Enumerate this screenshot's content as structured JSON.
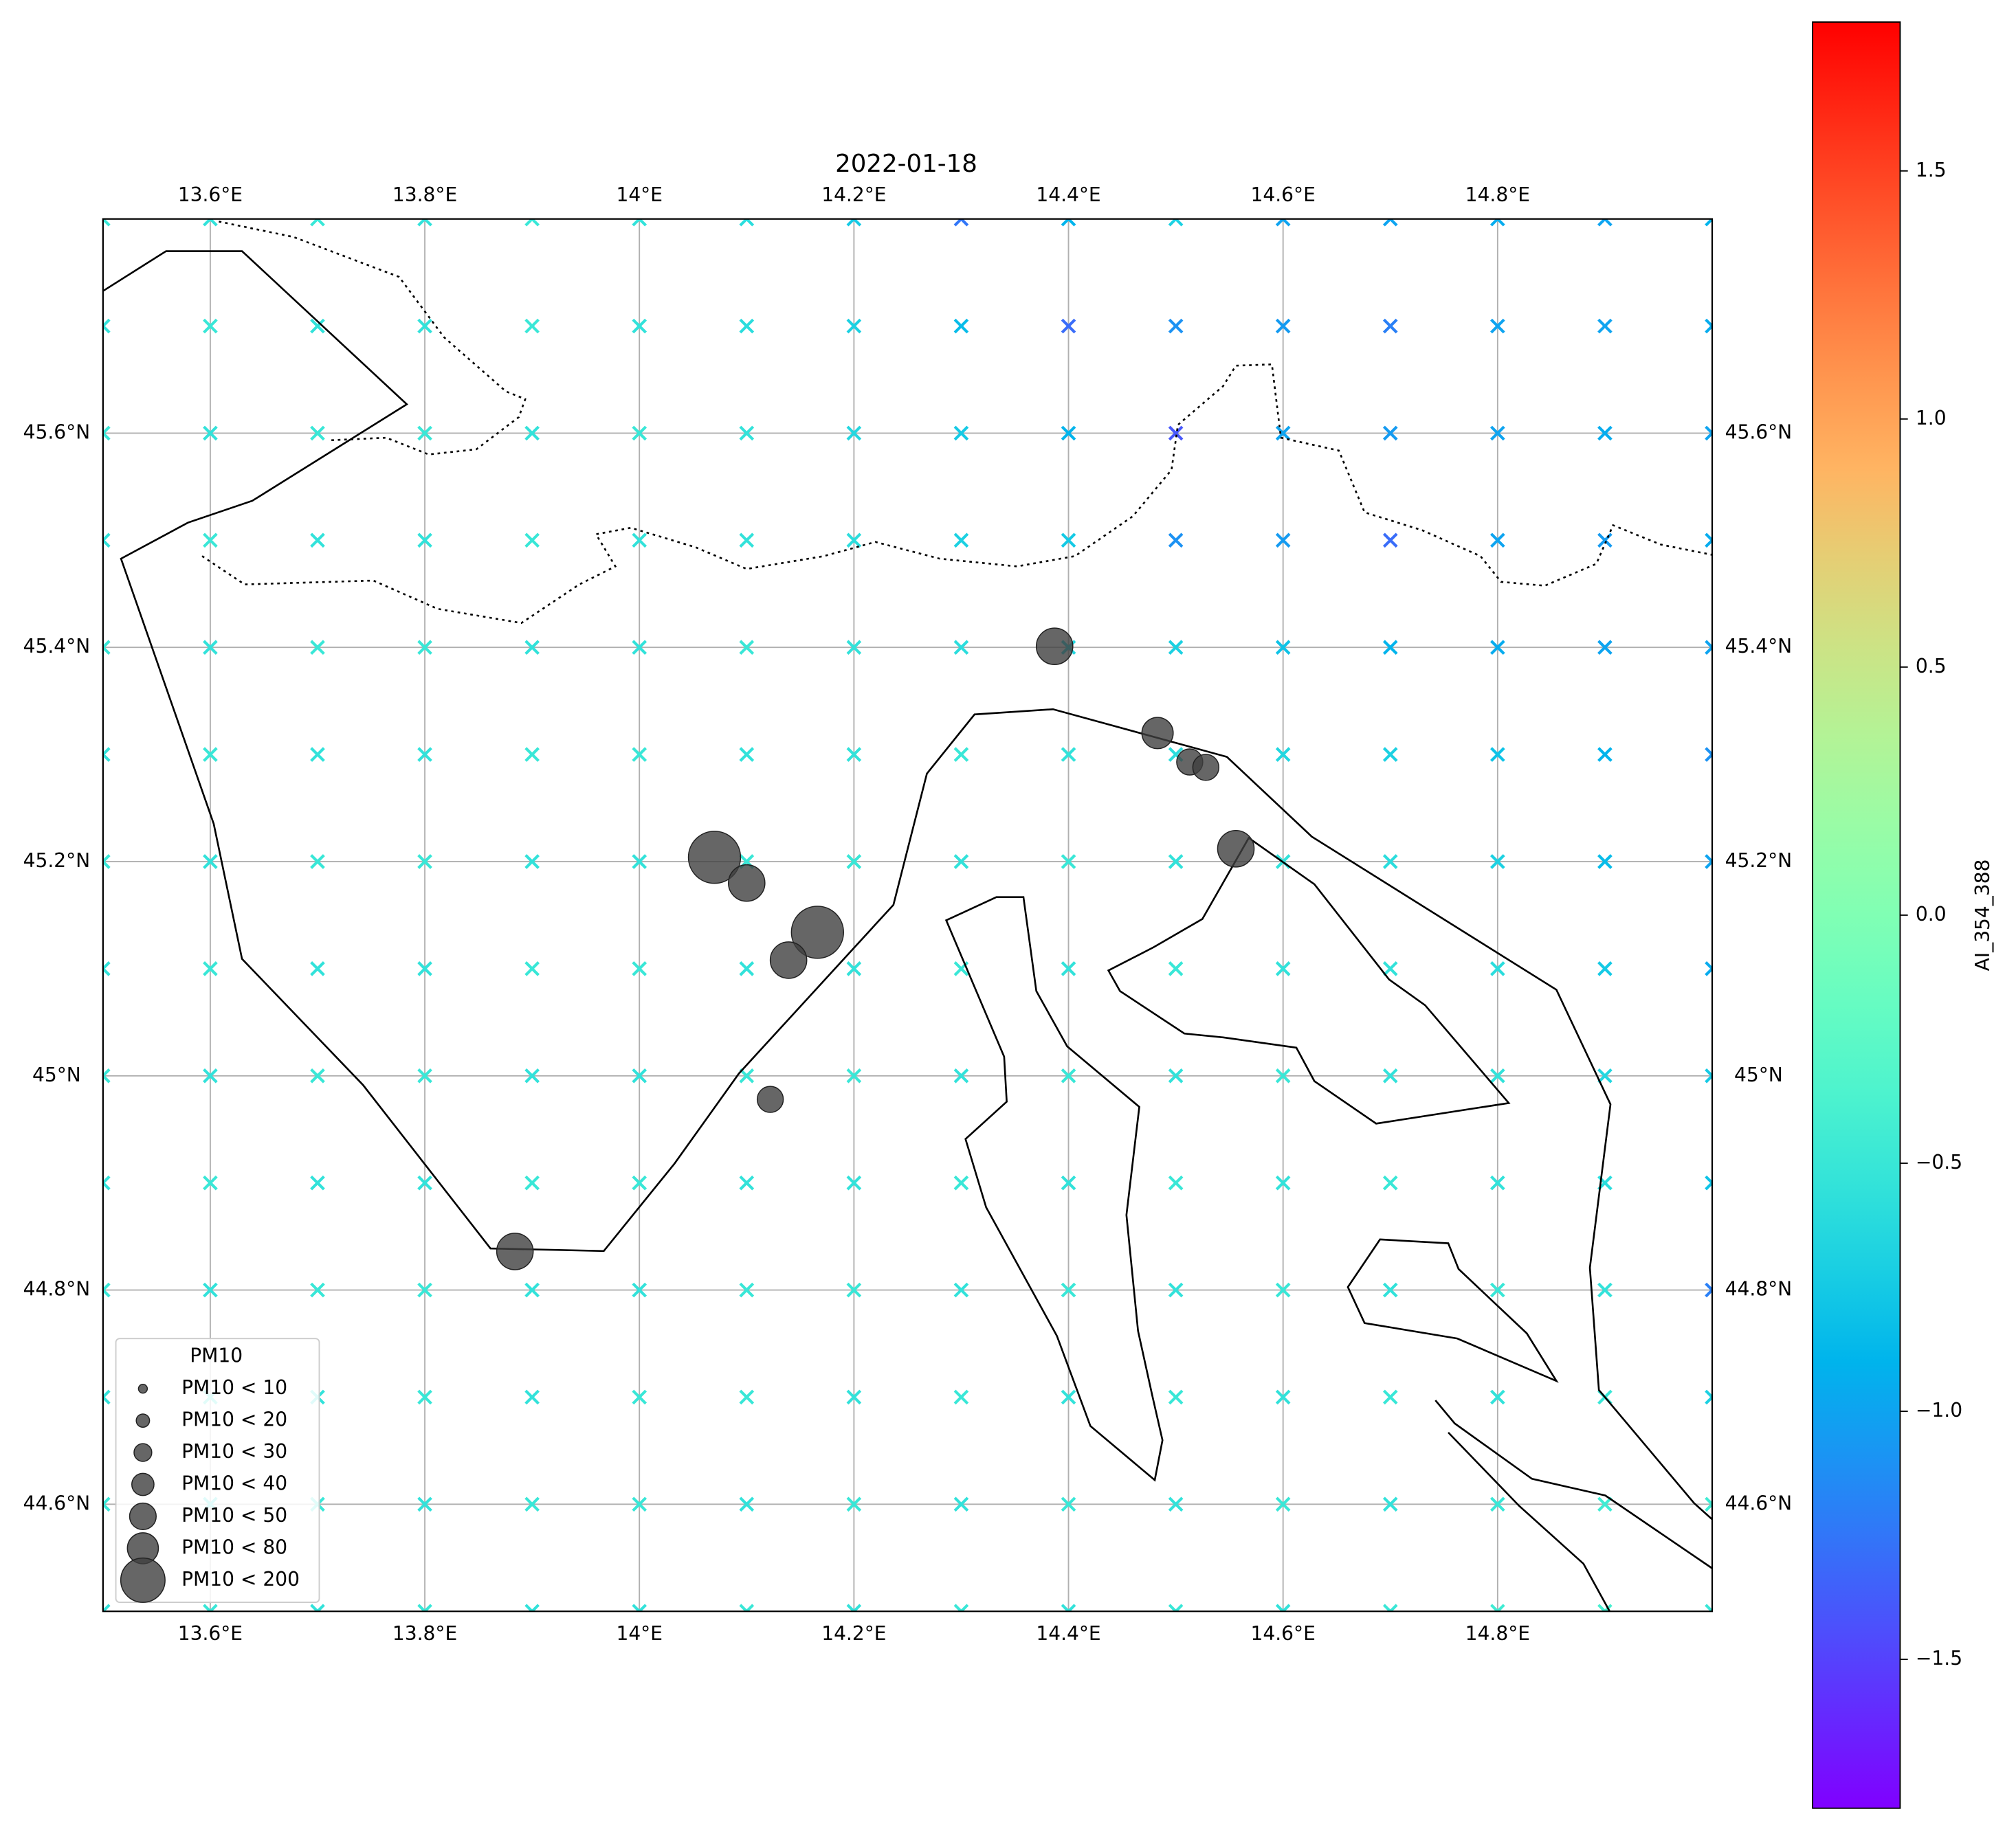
{
  "chart_data": {
    "type": "map-scatter",
    "title": "2022-01-18",
    "xlim": [
      13.5,
      15.0
    ],
    "ylim": [
      44.5,
      45.8
    ],
    "xticks": [
      {
        "value": 13.6,
        "label": "13.6°E"
      },
      {
        "value": 13.8,
        "label": "13.8°E"
      },
      {
        "value": 14.0,
        "label": "14°E"
      },
      {
        "value": 14.2,
        "label": "14.2°E"
      },
      {
        "value": 14.4,
        "label": "14.4°E"
      },
      {
        "value": 14.6,
        "label": "14.6°E"
      },
      {
        "value": 14.8,
        "label": "14.8°E"
      }
    ],
    "yticks": [
      {
        "value": 44.6,
        "label": "44.6°N"
      },
      {
        "value": 44.8,
        "label": "44.8°N"
      },
      {
        "value": 45.0,
        "label": "45°N"
      },
      {
        "value": 45.2,
        "label": "45.2°N"
      },
      {
        "value": 45.4,
        "label": "45.4°N"
      },
      {
        "value": 45.6,
        "label": "45.6°N"
      }
    ],
    "grid": true,
    "field": {
      "name": "AI_354_388",
      "colormap": "rainbow",
      "clim": [
        -1.8,
        1.8
      ],
      "cticks": [
        {
          "value": -1.5,
          "label": "−1.5"
        },
        {
          "value": -1.0,
          "label": "−1.0"
        },
        {
          "value": -0.5,
          "label": "−0.5"
        },
        {
          "value": 0.0,
          "label": "0.0"
        },
        0.5,
        {
          "value": 1.0,
          "label": "1.0"
        },
        1.5
      ],
      "x": [
        13.5,
        13.6,
        13.7,
        13.8,
        13.9,
        14.0,
        14.1,
        14.2,
        14.3,
        14.4,
        14.5,
        14.6,
        14.7,
        14.8,
        14.9,
        15.0
      ],
      "y": [
        44.5,
        44.6,
        44.7,
        44.8,
        44.9,
        45.0,
        45.1,
        45.2,
        45.3,
        45.4,
        45.5,
        45.6,
        45.7,
        45.8
      ],
      "values": [
        [
          -0.55,
          -0.5,
          -0.55,
          -0.5,
          -0.55,
          -0.55,
          -0.5,
          -0.55,
          -0.5,
          -0.55,
          -0.5,
          -0.55,
          -0.5,
          -0.45,
          -0.4,
          -0.5
        ],
        [
          -0.5,
          -0.55,
          -0.5,
          -0.55,
          -0.5,
          -0.5,
          -0.55,
          -0.5,
          -0.55,
          -0.5,
          -0.55,
          -0.5,
          -0.55,
          -0.5,
          -0.45,
          -0.45
        ],
        [
          -0.55,
          -0.5,
          -0.55,
          -0.5,
          -0.55,
          -0.5,
          -0.5,
          -0.55,
          -0.5,
          -0.55,
          -0.5,
          -0.55,
          -0.5,
          -0.55,
          -0.5,
          -0.7
        ],
        [
          -0.5,
          -0.55,
          -0.5,
          -0.5,
          -0.55,
          -0.55,
          -0.5,
          -0.5,
          -0.55,
          -0.5,
          -0.55,
          -0.5,
          -0.55,
          -0.5,
          -0.55,
          -1.2
        ],
        [
          -0.55,
          -0.5,
          -0.55,
          -0.55,
          -0.5,
          -0.5,
          -0.55,
          -0.55,
          -0.5,
          -0.55,
          -0.5,
          -0.55,
          -0.5,
          -0.55,
          -0.6,
          -0.8
        ],
        [
          -0.5,
          -0.55,
          -0.5,
          -0.5,
          -0.55,
          -0.55,
          -0.5,
          -0.5,
          -0.55,
          -0.5,
          -0.55,
          -0.5,
          -0.55,
          -0.55,
          -0.65,
          -0.75
        ],
        [
          -0.55,
          -0.5,
          -0.55,
          -0.55,
          -0.5,
          -0.5,
          -0.55,
          -0.55,
          -0.5,
          -0.55,
          -0.5,
          -0.55,
          -0.55,
          -0.6,
          -0.75,
          -0.95
        ],
        [
          -0.5,
          -0.55,
          -0.5,
          -0.5,
          -0.55,
          -0.55,
          -0.5,
          -0.5,
          -0.55,
          -0.5,
          -0.55,
          -0.55,
          -0.6,
          -0.7,
          -0.85,
          -1.0
        ],
        [
          -0.55,
          -0.5,
          -0.55,
          -0.55,
          -0.5,
          -0.5,
          -0.55,
          -0.55,
          -0.5,
          -0.55,
          -0.6,
          -0.65,
          -0.7,
          -0.8,
          -0.9,
          -1.1
        ],
        [
          -0.5,
          -0.55,
          -0.5,
          -0.5,
          -0.55,
          -0.55,
          -0.5,
          -0.55,
          -0.6,
          -0.65,
          -0.7,
          -0.8,
          -0.9,
          -0.95,
          -1.0,
          -1.0
        ],
        [
          -0.55,
          -0.5,
          -0.55,
          -0.55,
          -0.5,
          -0.55,
          -0.55,
          -0.6,
          -0.7,
          -0.75,
          -1.1,
          -1.05,
          -1.3,
          -1.0,
          -1.05,
          -0.95
        ],
        [
          -0.5,
          -0.55,
          -0.5,
          -0.5,
          -0.55,
          -0.5,
          -0.55,
          -0.65,
          -0.75,
          -0.9,
          -1.4,
          -1.0,
          -1.05,
          -1.0,
          -0.95,
          -1.0
        ],
        [
          -0.55,
          -0.5,
          -0.55,
          -0.55,
          -0.5,
          -0.55,
          -0.6,
          -0.7,
          -0.85,
          -1.3,
          -1.1,
          -1.05,
          -1.2,
          -1.0,
          -1.0,
          -0.95
        ],
        [
          -0.5,
          -0.55,
          -0.5,
          -0.55,
          -0.5,
          -0.55,
          -0.6,
          -0.75,
          -1.25,
          -0.9,
          -0.7,
          -1.0,
          -1.0,
          -0.95,
          -1.0,
          -0.9
        ]
      ]
    },
    "points": {
      "name": "PM10",
      "color": "#404040",
      "x": [
        14.387,
        14.483,
        14.513,
        14.528,
        14.556,
        14.07,
        14.1,
        14.166,
        14.139,
        14.122,
        13.884
      ],
      "y": [
        45.401,
        45.32,
        45.293,
        45.288,
        45.212,
        45.204,
        45.18,
        45.134,
        45.108,
        44.978,
        44.836
      ],
      "values": [
        70,
        45,
        30,
        35,
        55,
        120,
        55,
        110,
        75,
        35,
        65
      ]
    },
    "size_legend": {
      "title": "PM10",
      "bins": [
        10,
        20,
        30,
        40,
        50,
        80,
        200
      ],
      "labels": [
        "PM10 < 10",
        "PM10 < 20",
        "PM10 < 30",
        "PM10 < 40",
        "PM10 < 50",
        "PM10 < 80",
        "PM10 < 200"
      ]
    }
  }
}
